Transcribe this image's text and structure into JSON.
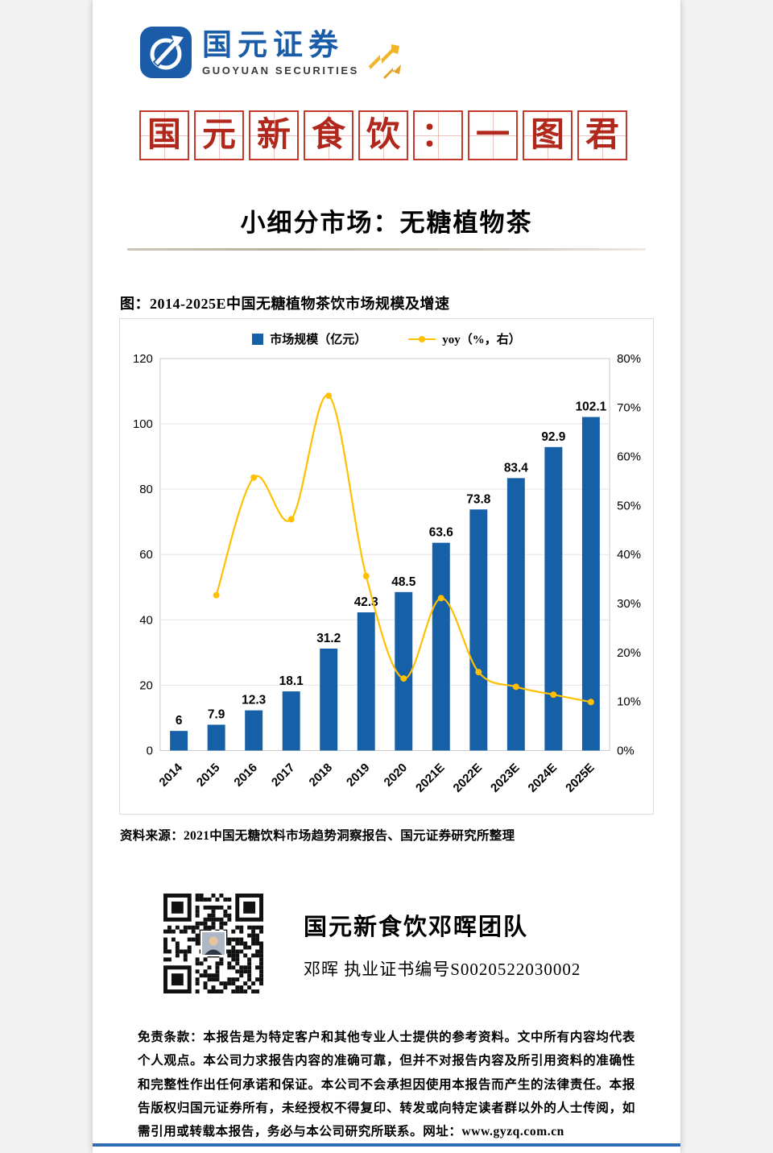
{
  "brand": {
    "logo_zh": "国元证券",
    "logo_en": "GUOYUAN SECURITIES",
    "logo_blue": "#1a5ca7",
    "gold": "#f0b429"
  },
  "title_boxes": {
    "chars": [
      "国",
      "元",
      "新",
      "食",
      "饮",
      "：",
      "一",
      "图",
      "君"
    ]
  },
  "section": {
    "title": "小细分市场：无糖植物茶"
  },
  "chart": {
    "caption": "图：2014-2025E中国无糖植物茶饮市场规模及增速"
  },
  "chart_data": {
    "type": "bar",
    "title": "图：2014-2025E中国无糖植物茶饮市场规模及增速",
    "categories": [
      "2014",
      "2015",
      "2016",
      "2017",
      "2018",
      "2019",
      "2020",
      "2021E",
      "2022E",
      "2023E",
      "2024E",
      "2025E"
    ],
    "series": [
      {
        "name": "市场规模（亿元）",
        "type": "bar",
        "axis": "left",
        "color": "#1660a8",
        "values": [
          6,
          7.9,
          12.3,
          18.1,
          31.2,
          42.3,
          48.5,
          63.6,
          73.8,
          83.4,
          92.9,
          102.1
        ],
        "labels": [
          "6",
          "7.9",
          "12.3",
          "18.1",
          "31.2",
          "42.3",
          "48.5",
          "63.6",
          "73.8",
          "83.4",
          "92.9",
          "102.1"
        ]
      },
      {
        "name": "yoy（%，右）",
        "type": "line",
        "axis": "right",
        "color": "#ffc000",
        "values": [
          null,
          31.7,
          55.7,
          47.2,
          72.4,
          35.6,
          14.7,
          31.1,
          16.0,
          13.0,
          11.4,
          9.9
        ]
      }
    ],
    "left_axis": {
      "min": 0,
      "max": 120,
      "step": 20,
      "ticks": [
        "0",
        "20",
        "40",
        "60",
        "80",
        "100",
        "120"
      ]
    },
    "right_axis": {
      "min": 0,
      "max": 80,
      "step": 10,
      "ticks": [
        "0%",
        "10%",
        "20%",
        "30%",
        "40%",
        "50%",
        "60%",
        "70%",
        "80%"
      ]
    },
    "grid": true,
    "legend_position": "top"
  },
  "source": {
    "text": "资料来源：2021中国无糖饮料市场趋势洞察报告、国元证券研究所整理"
  },
  "team": {
    "name": "国元新食饮邓晖团队",
    "cert": "邓晖 执业证书编号S0020522030002"
  },
  "disclaimer": {
    "text": "免责条款：本报告是为特定客户和其他专业人士提供的参考资料。文中所有内容均代表个人观点。本公司力求报告内容的准确可靠，但并不对报告内容及所引用资料的准确性和完整性作出任何承诺和保证。本公司不会承担因使用本报告而产生的法律责任。本报告版权归国元证券所有，未经授权不得复印、转发或向特定读者群以外的人士传阅，如需引用或转载本报告，务必与本公司研究所联系。网址：www.gyzq.com.cn"
  }
}
